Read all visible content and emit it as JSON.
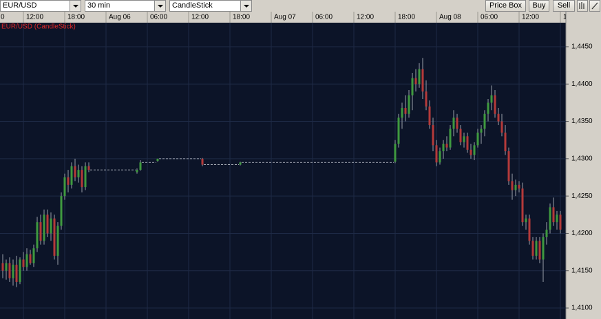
{
  "toolbar": {
    "symbol": "EUR/USD",
    "interval": "30 min",
    "style": "CandleStick",
    "buttons": [
      "Price Box",
      "Buy",
      "Sell"
    ]
  },
  "chart_data": {
    "type": "candlestick",
    "title": "EUR/USD (CandleStick)",
    "up_color": "#3f9a3f",
    "down_color": "#b53a3a",
    "wick_color": "#9aa0aa",
    "x": [
      9,
      9.5,
      10,
      10.5,
      11,
      11.5,
      12,
      12.5,
      13,
      13.5,
      14,
      14.5,
      15,
      15.5,
      16,
      16.5,
      17,
      17.5,
      18,
      18.5,
      19,
      19.5,
      20,
      20.5,
      21,
      21.5,
      28.5,
      29,
      31.5,
      38,
      43.5,
      66,
      66.5,
      67,
      67.5,
      68,
      68.5,
      69,
      69.5,
      70,
      70.5,
      71,
      71.5,
      72,
      72.5,
      73,
      73.5,
      74,
      74.5,
      75,
      75.5,
      76,
      76.5,
      77,
      77.5,
      78,
      78.5,
      79,
      79.5,
      80,
      80.5,
      81,
      81.5,
      82,
      82.5,
      83,
      83.5,
      84,
      84.5,
      85,
      85.5,
      86,
      86.5,
      87,
      87.5,
      88,
      88.5,
      89,
      89.5,
      90
    ],
    "open": [
      1.416,
      1.415,
      1.416,
      1.414,
      1.4158,
      1.4135,
      1.4165,
      1.4155,
      1.4172,
      1.416,
      1.418,
      1.4215,
      1.419,
      1.4225,
      1.42,
      1.422,
      1.417,
      1.421,
      1.425,
      1.4275,
      1.4265,
      1.429,
      1.4275,
      1.4285,
      1.4262,
      1.429,
      1.4282,
      1.4285,
      1.4297,
      1.43,
      1.4292,
      1.4296,
      1.432,
      1.4355,
      1.4368,
      1.436,
      1.4385,
      1.4408,
      1.44,
      1.442,
      1.439,
      1.437,
      1.4345,
      1.4318,
      1.4295,
      1.431,
      1.432,
      1.4315,
      1.434,
      1.4355,
      1.434,
      1.4322,
      1.433,
      1.4312,
      1.4305,
      1.4318,
      1.4335,
      1.434,
      1.436,
      1.4375,
      1.4385,
      1.436,
      1.435,
      1.4335,
      1.431,
      1.427,
      1.4258,
      1.4265,
      1.426,
      1.4215,
      1.422,
      1.419,
      1.417,
      1.419,
      1.4165,
      1.4195,
      1.4205,
      1.4235,
      1.4215,
      1.4225
    ],
    "high": [
      1.4172,
      1.4165,
      1.4168,
      1.4165,
      1.417,
      1.4168,
      1.4175,
      1.418,
      1.4178,
      1.4185,
      1.4222,
      1.4225,
      1.4232,
      1.4232,
      1.4228,
      1.4225,
      1.4215,
      1.4255,
      1.428,
      1.4285,
      1.4295,
      1.43,
      1.4292,
      1.429,
      1.4295,
      1.4295,
      1.4287,
      1.4298,
      1.43,
      1.4301,
      1.4296,
      1.4325,
      1.436,
      1.4375,
      1.4385,
      1.4392,
      1.4415,
      1.442,
      1.4428,
      1.4435,
      1.4405,
      1.4378,
      1.4355,
      1.4325,
      1.4315,
      1.4325,
      1.433,
      1.4345,
      1.4365,
      1.436,
      1.4345,
      1.4335,
      1.4335,
      1.432,
      1.4322,
      1.434,
      1.4345,
      1.4365,
      1.438,
      1.4398,
      1.4392,
      1.4368,
      1.436,
      1.4345,
      1.4315,
      1.428,
      1.4272,
      1.427,
      1.4268,
      1.4225,
      1.4225,
      1.4195,
      1.4195,
      1.4195,
      1.42,
      1.4215,
      1.424,
      1.4248,
      1.423,
      1.423
    ],
    "low": [
      1.414,
      1.4138,
      1.4135,
      1.413,
      1.4128,
      1.4132,
      1.415,
      1.415,
      1.4158,
      1.4155,
      1.4175,
      1.4185,
      1.4185,
      1.4195,
      1.419,
      1.4165,
      1.4158,
      1.4205,
      1.4245,
      1.4255,
      1.426,
      1.427,
      1.4268,
      1.4255,
      1.4258,
      1.4282,
      1.428,
      1.4284,
      1.4296,
      1.429,
      1.4291,
      1.4294,
      1.4315,
      1.434,
      1.435,
      1.4355,
      1.4365,
      1.439,
      1.4395,
      1.438,
      1.4365,
      1.434,
      1.431,
      1.429,
      1.4292,
      1.43,
      1.431,
      1.4312,
      1.433,
      1.4335,
      1.4318,
      1.4315,
      1.4308,
      1.43,
      1.4298,
      1.4315,
      1.432,
      1.433,
      1.435,
      1.4365,
      1.4355,
      1.4345,
      1.433,
      1.4305,
      1.4265,
      1.4245,
      1.425,
      1.4255,
      1.421,
      1.4205,
      1.4185,
      1.4165,
      1.4165,
      1.416,
      1.4135,
      1.4185,
      1.42,
      1.421,
      1.4205,
      1.42
    ],
    "close": [
      1.415,
      1.416,
      1.414,
      1.4158,
      1.4135,
      1.4165,
      1.4155,
      1.4172,
      1.416,
      1.418,
      1.4215,
      1.419,
      1.4225,
      1.42,
      1.422,
      1.417,
      1.421,
      1.425,
      1.4275,
      1.4265,
      1.429,
      1.4275,
      1.4285,
      1.4262,
      1.429,
      1.4285,
      1.4285,
      1.4295,
      1.43,
      1.4292,
      1.4295,
      1.432,
      1.4355,
      1.4368,
      1.436,
      1.4385,
      1.4408,
      1.44,
      1.442,
      1.439,
      1.437,
      1.4345,
      1.4318,
      1.4295,
      1.431,
      1.432,
      1.4315,
      1.434,
      1.4355,
      1.434,
      1.4322,
      1.433,
      1.4312,
      1.4305,
      1.4318,
      1.4335,
      1.434,
      1.436,
      1.4375,
      1.4385,
      1.436,
      1.435,
      1.4335,
      1.431,
      1.427,
      1.4258,
      1.4265,
      1.426,
      1.4215,
      1.422,
      1.419,
      1.417,
      1.419,
      1.4165,
      1.4195,
      1.4205,
      1.4235,
      1.4215,
      1.4225,
      1.4205
    ],
    "xlim": [
      8.6,
      90.8
    ],
    "xticks": [
      {
        "value": 6,
        "label": "0"
      },
      {
        "value": 12,
        "label": "12:00"
      },
      {
        "value": 18,
        "label": "18:00"
      },
      {
        "value": 24,
        "label": "Aug 06"
      },
      {
        "value": 30,
        "label": "06:00"
      },
      {
        "value": 36,
        "label": "12:00"
      },
      {
        "value": 42,
        "label": "18:00"
      },
      {
        "value": 48,
        "label": "Aug 07"
      },
      {
        "value": 54,
        "label": "06:00"
      },
      {
        "value": 60,
        "label": "12:00"
      },
      {
        "value": 66,
        "label": "18:00"
      },
      {
        "value": 72,
        "label": "Aug 08"
      },
      {
        "value": 78,
        "label": "06:00"
      },
      {
        "value": 84,
        "label": "12:00"
      },
      {
        "value": 90,
        "label": "1"
      }
    ],
    "ylim": [
      1.40853,
      1.44822
    ],
    "yticks": [
      {
        "value": 1.445,
        "label": "1,4450"
      },
      {
        "value": 1.44,
        "label": "1,4400"
      },
      {
        "value": 1.435,
        "label": "1,4350"
      },
      {
        "value": 1.43,
        "label": "1,4300"
      },
      {
        "value": 1.425,
        "label": "1,4250"
      },
      {
        "value": 1.42,
        "label": "1,4200"
      },
      {
        "value": 1.415,
        "label": "1,4150"
      },
      {
        "value": 1.41,
        "label": "1,4100"
      }
    ],
    "grid": true
  }
}
